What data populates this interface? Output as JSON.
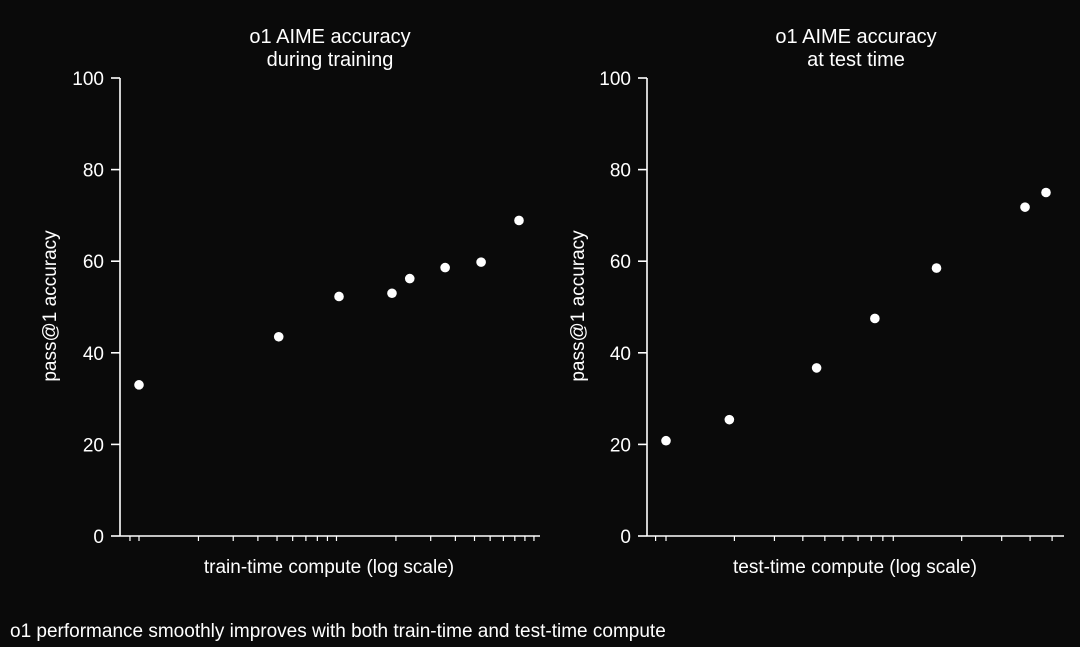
{
  "caption": "o1 performance smoothly improves with both train-time and test-time compute",
  "colors": {
    "background": "#0a0a0a",
    "foreground": "#ffffff"
  },
  "chart_data": [
    {
      "type": "scatter",
      "title": [
        "o1 AIME accuracy",
        "during training"
      ],
      "xlabel": "train-time compute (log scale)",
      "ylabel": "pass@1 accuracy",
      "x_scale": "log",
      "x_ticks_labeled": false,
      "ylim": [
        0,
        100
      ],
      "yticks": [
        "0",
        "20",
        "40",
        "60",
        "80",
        "100"
      ],
      "grid": false,
      "series": [
        {
          "points": [
            {
              "x": 1,
              "y": 33
            },
            {
              "x": 5.1,
              "y": 43.5
            },
            {
              "x": 10.3,
              "y": 52.3
            },
            {
              "x": 19.1,
              "y": 53
            },
            {
              "x": 23.5,
              "y": 56.2
            },
            {
              "x": 35.5,
              "y": 58.6
            },
            {
              "x": 54,
              "y": 59.8
            },
            {
              "x": 84,
              "y": 68.9
            }
          ]
        }
      ]
    },
    {
      "type": "scatter",
      "title": [
        "o1 AIME accuracy",
        "at test time"
      ],
      "xlabel": "test-time compute (log scale)",
      "ylabel": "pass@1 accuracy",
      "x_scale": "log",
      "x_ticks_labeled": false,
      "ylim": [
        0,
        100
      ],
      "yticks": [
        "0",
        "20",
        "40",
        "60",
        "80",
        "100"
      ],
      "grid": false,
      "series": [
        {
          "points": [
            {
              "x": 1,
              "y": 20.8
            },
            {
              "x": 1.9,
              "y": 25.4
            },
            {
              "x": 4.6,
              "y": 36.7
            },
            {
              "x": 8.3,
              "y": 47.5
            },
            {
              "x": 15.5,
              "y": 58.5
            },
            {
              "x": 38,
              "y": 71.8
            },
            {
              "x": 47,
              "y": 75
            }
          ]
        }
      ]
    }
  ]
}
